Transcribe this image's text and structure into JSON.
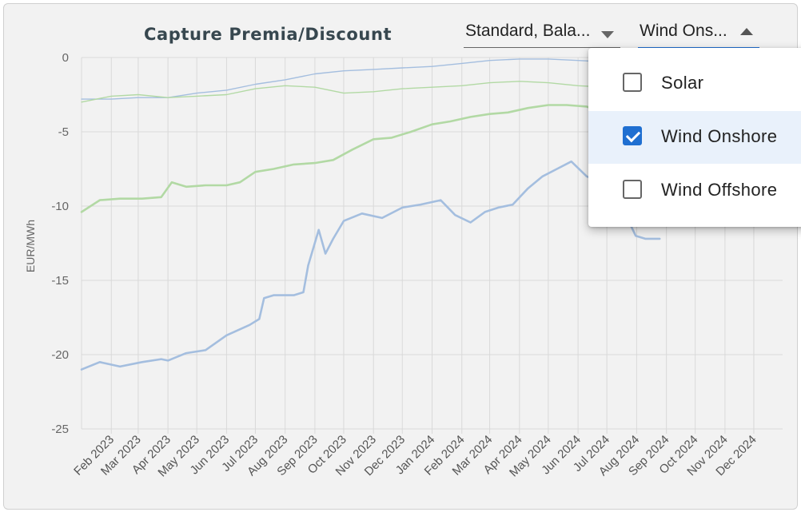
{
  "title": "Capture Premia/Discount",
  "filters": {
    "product": {
      "value": "Standard, Bala..."
    },
    "technology": {
      "value": "Wind Ons..."
    }
  },
  "menu": {
    "items": [
      {
        "label": "Solar",
        "checked": false
      },
      {
        "label": "Wind Onshore",
        "checked": true
      },
      {
        "label": "Wind Offshore",
        "checked": false
      }
    ]
  },
  "colors": {
    "blue_line": "#a4bedf",
    "green_line": "#b2d9a4",
    "accent": "#1f6fd1"
  },
  "chart_data": {
    "type": "line",
    "ylabel": "EUR/MWh",
    "ylim": [
      -25,
      0
    ],
    "yticks": [
      0,
      -5,
      -10,
      -15,
      -20,
      -25
    ],
    "xlim": [
      "2023-01-01",
      "2024-12-31"
    ],
    "xticks": [
      "Feb 2023",
      "Mar 2023",
      "Apr 2023",
      "May 2023",
      "Jun 2023",
      "Jul 2023",
      "Aug 2023",
      "Sep 2023",
      "Oct 2023",
      "Nov 2023",
      "Dec 2023",
      "Jan 2024",
      "Feb 2024",
      "Mar 2024",
      "Apr 2024",
      "May 2024",
      "Jun 2024",
      "Jul 2024",
      "Aug 2024",
      "Sep 2024",
      "Oct 2024",
      "Nov 2024",
      "Dec 2024"
    ],
    "grid": true,
    "series": [
      {
        "color": "#a4bedf",
        "width": 1.4,
        "x": [
          "2023-01-01",
          "2023-02-01",
          "2023-03-01",
          "2023-04-01",
          "2023-05-01",
          "2023-06-01",
          "2023-07-01",
          "2023-08-01",
          "2023-09-01",
          "2023-10-01",
          "2023-11-01",
          "2023-12-01",
          "2024-01-01",
          "2024-02-01",
          "2024-03-01",
          "2024-04-01",
          "2024-05-01",
          "2024-06-01",
          "2024-07-01"
        ],
        "values": [
          -2.8,
          -2.8,
          -2.7,
          -2.7,
          -2.4,
          -2.2,
          -1.8,
          -1.5,
          -1.1,
          -0.9,
          -0.8,
          -0.7,
          -0.6,
          -0.4,
          -0.2,
          -0.1,
          -0.1,
          -0.2,
          -0.3
        ]
      },
      {
        "color": "#b2d9a4",
        "width": 1.4,
        "x": [
          "2023-01-01",
          "2023-02-01",
          "2023-03-01",
          "2023-04-01",
          "2023-05-01",
          "2023-06-01",
          "2023-07-01",
          "2023-08-01",
          "2023-09-01",
          "2023-10-01",
          "2023-11-01",
          "2023-12-01",
          "2024-01-01",
          "2024-02-01",
          "2024-03-01",
          "2024-04-01",
          "2024-05-01",
          "2024-06-01",
          "2024-07-01"
        ],
        "values": [
          -3.0,
          -2.6,
          -2.5,
          -2.7,
          -2.6,
          -2.5,
          -2.1,
          -1.9,
          -2.0,
          -2.4,
          -2.3,
          -2.1,
          -2.0,
          -1.9,
          -1.7,
          -1.6,
          -1.7,
          -1.9,
          -2.0
        ]
      },
      {
        "color": "#b2d9a4",
        "width": 2.6,
        "x": [
          "2023-01-01",
          "2023-01-20",
          "2023-02-10",
          "2023-03-05",
          "2023-03-25",
          "2023-04-05",
          "2023-04-20",
          "2023-05-10",
          "2023-06-01",
          "2023-06-15",
          "2023-07-01",
          "2023-07-20",
          "2023-08-10",
          "2023-09-01",
          "2023-09-20",
          "2023-10-10",
          "2023-11-01",
          "2023-11-20",
          "2023-12-10",
          "2024-01-01",
          "2024-01-20",
          "2024-02-10",
          "2024-03-01",
          "2024-03-20",
          "2024-04-10",
          "2024-05-01",
          "2024-05-20",
          "2024-06-10",
          "2024-06-30"
        ],
        "values": [
          -10.4,
          -9.6,
          -9.5,
          -9.5,
          -9.4,
          -8.4,
          -8.7,
          -8.6,
          -8.6,
          -8.4,
          -7.7,
          -7.5,
          -7.2,
          -7.1,
          -6.9,
          -6.2,
          -5.5,
          -5.4,
          -5.0,
          -4.5,
          -4.3,
          -4.0,
          -3.8,
          -3.7,
          -3.4,
          -3.2,
          -3.2,
          -3.3,
          -3.8
        ]
      },
      {
        "color": "#a4bedf",
        "width": 2.6,
        "x": [
          "2023-01-01",
          "2023-01-20",
          "2023-02-10",
          "2023-03-05",
          "2023-03-25",
          "2023-04-01",
          "2023-04-20",
          "2023-05-10",
          "2023-06-01",
          "2023-06-25",
          "2023-07-05",
          "2023-07-10",
          "2023-07-20",
          "2023-08-10",
          "2023-08-20",
          "2023-08-25",
          "2023-09-05",
          "2023-09-12",
          "2023-09-20",
          "2023-10-01",
          "2023-10-20",
          "2023-11-10",
          "2023-12-01",
          "2023-12-20",
          "2024-01-10",
          "2024-01-25",
          "2024-02-10",
          "2024-02-25",
          "2024-03-10",
          "2024-03-25",
          "2024-04-10",
          "2024-04-25",
          "2024-05-10",
          "2024-05-25",
          "2024-06-10",
          "2024-06-25",
          "2024-07-05",
          "2024-07-20",
          "2024-07-31",
          "2024-08-10",
          "2024-08-25"
        ],
        "values": [
          -21.0,
          -20.5,
          -20.8,
          -20.5,
          -20.3,
          -20.4,
          -19.9,
          -19.7,
          -18.7,
          -18.0,
          -17.6,
          -16.2,
          -16.0,
          -16.0,
          -15.8,
          -14.0,
          -11.6,
          -13.2,
          -12.2,
          -11.0,
          -10.5,
          -10.8,
          -10.1,
          -9.9,
          -9.6,
          -10.6,
          -11.1,
          -10.4,
          -10.1,
          -9.9,
          -8.8,
          -8.0,
          -7.5,
          -7.0,
          -8.0,
          -8.4,
          -9.5,
          -10.5,
          -12.0,
          -12.2,
          -12.2
        ]
      }
    ]
  }
}
